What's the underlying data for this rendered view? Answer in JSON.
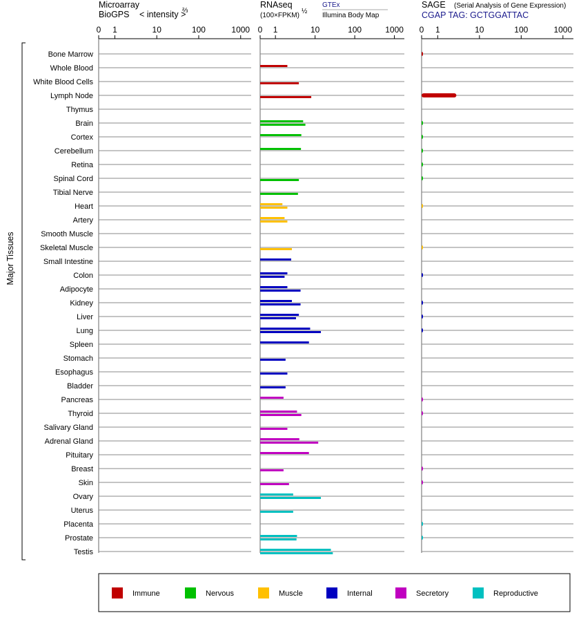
{
  "chart_data": {
    "type": "bar",
    "title": "Major Tissues",
    "tissues": [
      "Bone Marrow",
      "Whole Blood",
      "White Blood Cells",
      "Lymph Node",
      "Thymus",
      "Brain",
      "Cortex",
      "Cerebellum",
      "Retina",
      "Spinal Cord",
      "Tibial Nerve",
      "Heart",
      "Artery",
      "Smooth Muscle",
      "Skeletal Muscle",
      "Small Intestine",
      "Colon",
      "Adipocyte",
      "Kidney",
      "Liver",
      "Lung",
      "Spleen",
      "Stomach",
      "Esophagus",
      "Bladder",
      "Pancreas",
      "Thyroid",
      "Salivary Gland",
      "Adrenal Gland",
      "Pituitary",
      "Breast",
      "Skin",
      "Ovary",
      "Uterus",
      "Placenta",
      "Prostate",
      "Testis"
    ],
    "groups": [
      "Immune",
      "Immune",
      "Immune",
      "Immune",
      "Immune",
      "Nervous",
      "Nervous",
      "Nervous",
      "Nervous",
      "Nervous",
      "Nervous",
      "Muscle",
      "Muscle",
      "Muscle",
      "Muscle",
      "Internal",
      "Internal",
      "Internal",
      "Internal",
      "Internal",
      "Internal",
      "Internal",
      "Internal",
      "Internal",
      "Internal",
      "Secretory",
      "Secretory",
      "Secretory",
      "Secretory",
      "Secretory",
      "Secretory",
      "Secretory",
      "Reproductive",
      "Reproductive",
      "Reproductive",
      "Reproductive",
      "Reproductive"
    ],
    "tick_values": [
      0,
      1,
      10,
      100,
      1000
    ],
    "tick_labels": [
      "0",
      "1",
      "10",
      "100",
      "1000"
    ],
    "panels": {
      "microarray": {
        "title_line1": "Microarray",
        "title_line2": "BioGPS",
        "scale_label": "< intensity >",
        "scale_exponent": "⅔",
        "values": [
          0,
          0,
          0,
          0,
          0,
          0,
          0,
          0,
          0,
          0,
          0,
          0,
          0,
          0,
          0,
          0,
          0,
          0,
          0,
          0,
          0,
          0,
          0,
          0,
          0,
          0,
          0,
          0,
          0,
          0,
          0,
          0,
          0,
          0,
          0,
          0,
          0
        ]
      },
      "rnaseq": {
        "title": "RNAseq",
        "subtitle": "(100×FPKM)",
        "subtitle_exponent": "½",
        "series": [
          {
            "name": "GTEx",
            "values": [
              null,
              2.0,
              null,
              null,
              null,
              5.0,
              4.5,
              4.4,
              null,
              null,
              null,
              1.5,
              1.7,
              null,
              null,
              2.5,
              2.0,
              2.0,
              2.6,
              3.9,
              7.5,
              7.0,
              null,
              null,
              null,
              1.6,
              3.5,
              null,
              4.0,
              7.0,
              null,
              null,
              2.8,
              null,
              null,
              3.5,
              25
            ]
          },
          {
            "name": "Illumina Body Map",
            "values": [
              null,
              null,
              3.9,
              8.0,
              null,
              5.7,
              null,
              null,
              null,
              3.9,
              3.7,
              2.0,
              2.0,
              null,
              2.6,
              null,
              1.7,
              4.3,
              4.3,
              3.3,
              14.0,
              null,
              1.8,
              2.0,
              1.8,
              null,
              4.5,
              2.0,
              12.0,
              null,
              1.6,
              2.2,
              14.0,
              2.8,
              null,
              3.4,
              28
            ]
          }
        ]
      },
      "sage": {
        "title": "SAGE",
        "subtitle": "(Serial Analysis of Gene Expression)",
        "tag_label": "CGAP TAG: GCTGGATTAC",
        "values": [
          0.02,
          null,
          null,
          2.8,
          null,
          0.02,
          0.02,
          0.02,
          0.02,
          0.02,
          null,
          0.01,
          null,
          null,
          0.01,
          null,
          0.02,
          null,
          0.02,
          0.02,
          0.02,
          null,
          null,
          null,
          null,
          0.02,
          0.02,
          null,
          null,
          null,
          0.02,
          0.02,
          null,
          null,
          0.02,
          0.02,
          null
        ]
      }
    },
    "legend": [
      {
        "name": "Immune",
        "color": "#c00000"
      },
      {
        "name": "Nervous",
        "color": "#00c000"
      },
      {
        "name": "Muscle",
        "color": "#ffc000"
      },
      {
        "name": "Internal",
        "color": "#0000c0"
      },
      {
        "name": "Secretory",
        "color": "#c000c0"
      },
      {
        "name": "Reproductive",
        "color": "#00c0c0"
      }
    ],
    "group_colors": {
      "Immune": "#c00000",
      "Nervous": "#00c000",
      "Muscle": "#ffc000",
      "Internal": "#0000c0",
      "Secretory": "#c000c0",
      "Reproductive": "#00c0c0"
    }
  }
}
